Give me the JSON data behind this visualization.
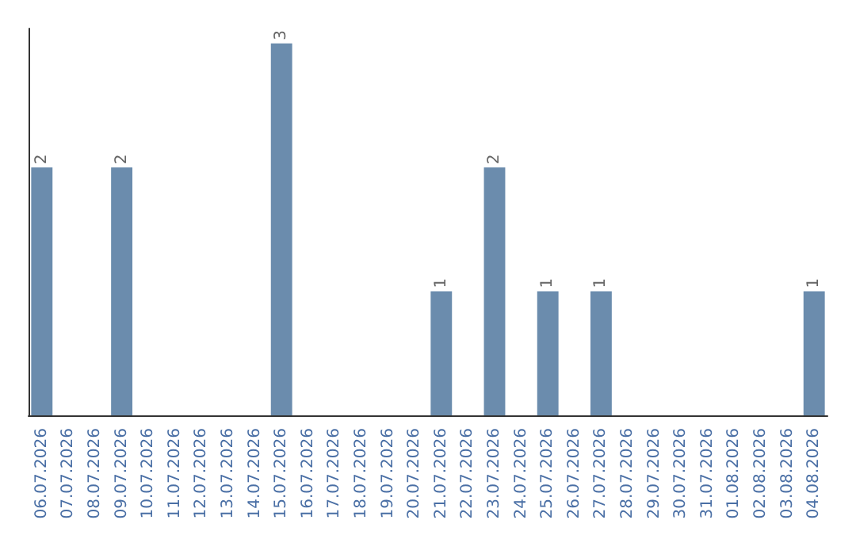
{
  "chart_data": {
    "type": "bar",
    "categories": [
      "06.07.2026",
      "07.07.2026",
      "08.07.2026",
      "09.07.2026",
      "10.07.2026",
      "11.07.2026",
      "12.07.2026",
      "13.07.2026",
      "14.07.2026",
      "15.07.2026",
      "16.07.2026",
      "17.07.2026",
      "18.07.2026",
      "19.07.2026",
      "20.07.2026",
      "21.07.2026",
      "22.07.2026",
      "23.07.2026",
      "24.07.2026",
      "25.07.2026",
      "26.07.2026",
      "27.07.2026",
      "28.07.2026",
      "29.07.2026",
      "30.07.2026",
      "31.07.2026",
      "01.08.2026",
      "02.08.2026",
      "03.08.2026",
      "04.08.2026"
    ],
    "values": [
      2,
      null,
      null,
      2,
      null,
      null,
      null,
      null,
      null,
      3,
      null,
      null,
      null,
      null,
      null,
      1,
      null,
      2,
      null,
      1,
      null,
      1,
      null,
      null,
      null,
      null,
      null,
      null,
      null,
      1
    ],
    "color": "#6b8cad",
    "data_labels": true,
    "tick_labels": "x"
  }
}
